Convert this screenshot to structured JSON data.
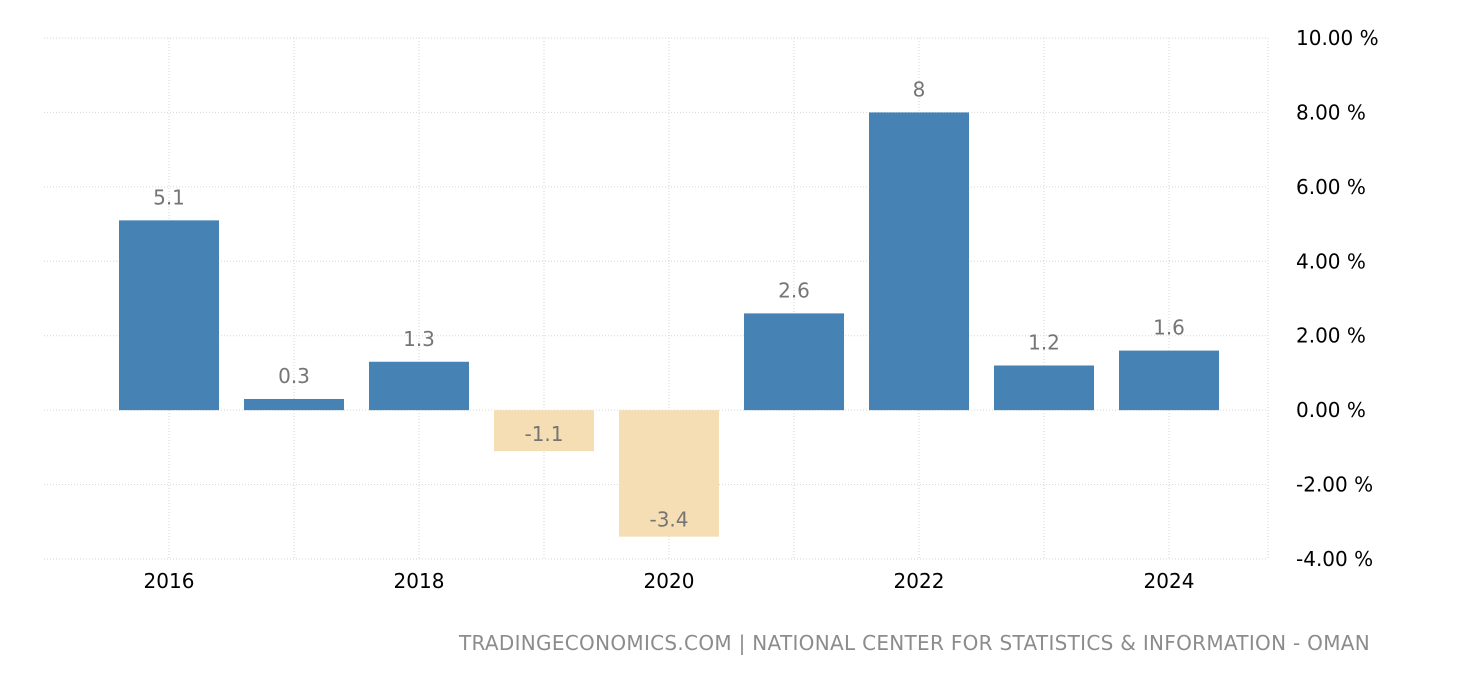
{
  "chart_data": {
    "type": "bar",
    "title": "",
    "xlabel": "",
    "ylabel": "",
    "categories": [
      "2016",
      "2017",
      "2018",
      "2019",
      "2020",
      "2021",
      "2022",
      "2023",
      "2024"
    ],
    "values": [
      5.1,
      0.3,
      1.3,
      -1.1,
      -3.4,
      2.6,
      8,
      1.2,
      1.6
    ],
    "value_labels": [
      "5.1",
      "0.3",
      "1.3",
      "-1.1",
      "-3.4",
      "2.6",
      "8",
      "1.2",
      "1.6"
    ],
    "x_tick_labels": [
      "2016",
      "2018",
      "2020",
      "2022",
      "2024"
    ],
    "y_tick_values": [
      10,
      8,
      6,
      4,
      2,
      0,
      -2,
      -4
    ],
    "y_tick_labels": [
      "10.00 %",
      "8.00 %",
      "6.00 %",
      "4.00 %",
      "2.00 %",
      "0.00 %",
      "-2.00 %",
      "-4.00 %"
    ],
    "ylim": [
      -4,
      10
    ],
    "grid": true,
    "y_axis_side": "right",
    "colors": {
      "positive": "#4682b4",
      "negative": "#f5deb3"
    },
    "source": "TRADINGECONOMICS.COM | NATIONAL CENTER FOR STATISTICS & INFORMATION - OMAN"
  }
}
